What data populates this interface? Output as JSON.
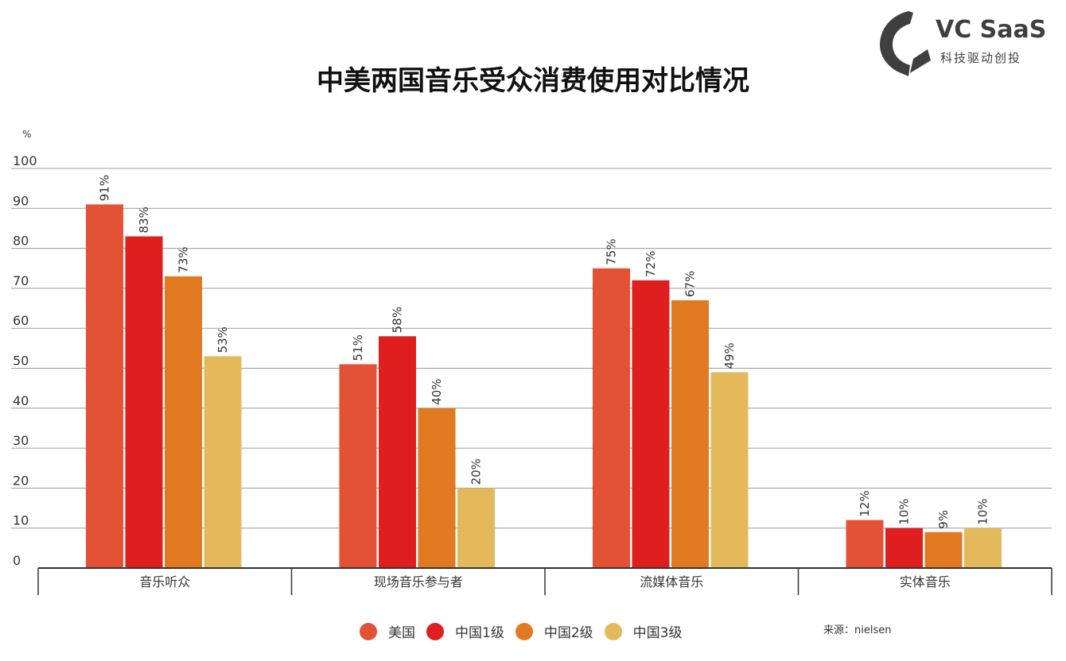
{
  "title": "中美两国音乐受众消费使用对比情况",
  "logo": {
    "name": "VC SaaS",
    "tagline": "科技驱动创投"
  },
  "source": "来源：nielsen",
  "colors": {
    "美国": "#e45236",
    "中国1级": "#df1e1e",
    "中国2级": "#e07920",
    "中国3级": "#e3b95c"
  },
  "chart_data": {
    "type": "bar",
    "ylabel": "%",
    "ylim": [
      0,
      100
    ],
    "yticks": [
      0,
      10,
      20,
      30,
      40,
      50,
      60,
      70,
      80,
      90,
      100
    ],
    "grid": true,
    "legend_position": "bottom",
    "categories": [
      "音乐听众",
      "现场音乐参与者",
      "流媒体音乐",
      "实体音乐"
    ],
    "series": [
      {
        "name": "美国",
        "values": [
          91,
          51,
          75,
          12
        ],
        "labels": [
          "91%",
          "51%",
          "75%",
          "12%"
        ]
      },
      {
        "name": "中国1级",
        "values": [
          83,
          58,
          72,
          10
        ],
        "labels": [
          "83%",
          "58%",
          "72%",
          "10%"
        ]
      },
      {
        "name": "中国2级",
        "values": [
          73,
          40,
          67,
          9
        ],
        "labels": [
          "73%",
          "40%",
          "67%",
          "9%"
        ]
      },
      {
        "name": "中国3级",
        "values": [
          53,
          20,
          49,
          10
        ],
        "labels": [
          "53%",
          "20%",
          "49%",
          "10%"
        ]
      }
    ]
  }
}
